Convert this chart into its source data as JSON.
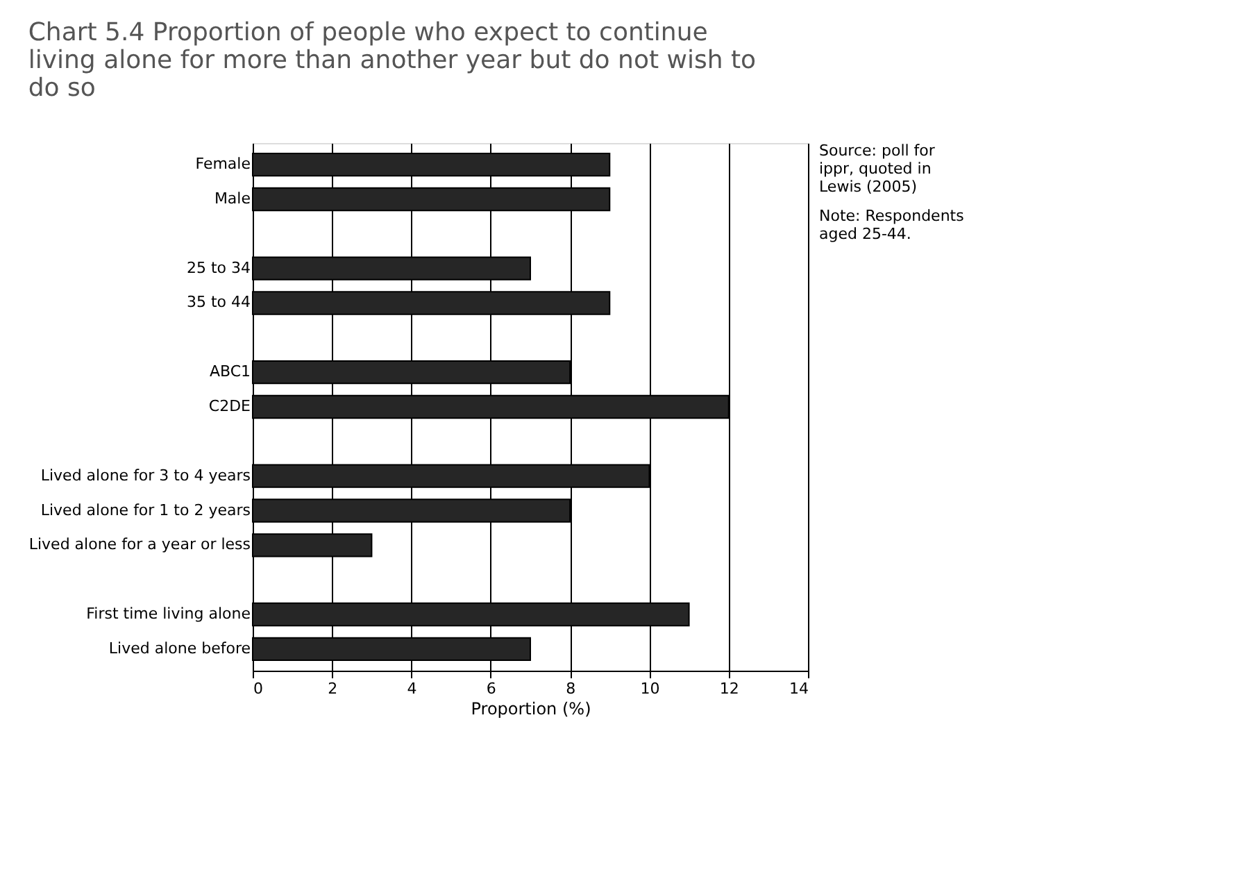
{
  "chart_data": {
    "type": "bar",
    "orientation": "horizontal",
    "title": "Chart 5.4 Proportion of people who expect to continue living alone for more than another year but do not wish to do so",
    "categories": [
      "Female",
      "Male",
      null,
      "25 to 34",
      "35 to 44",
      null,
      "ABC1",
      "C2DE",
      null,
      "Lived alone for 3 to 4 years",
      "Lived alone for 1 to 2 years",
      "Lived alone for a year or less",
      null,
      "First time living alone",
      "Lived alone before"
    ],
    "values": [
      9,
      9,
      null,
      7,
      9,
      null,
      8,
      12,
      null,
      10,
      8,
      3,
      null,
      11,
      7
    ],
    "color": "#262626",
    "xlabel": "Proportion (%)",
    "xlim": [
      0,
      14
    ],
    "xticks": [
      0,
      2,
      4,
      6,
      8,
      10,
      12,
      14
    ],
    "grid": "x",
    "annotations": [
      "Source: poll for ippr, quoted in Lewis (2005)",
      "Note: Respondents aged 25-44."
    ]
  }
}
